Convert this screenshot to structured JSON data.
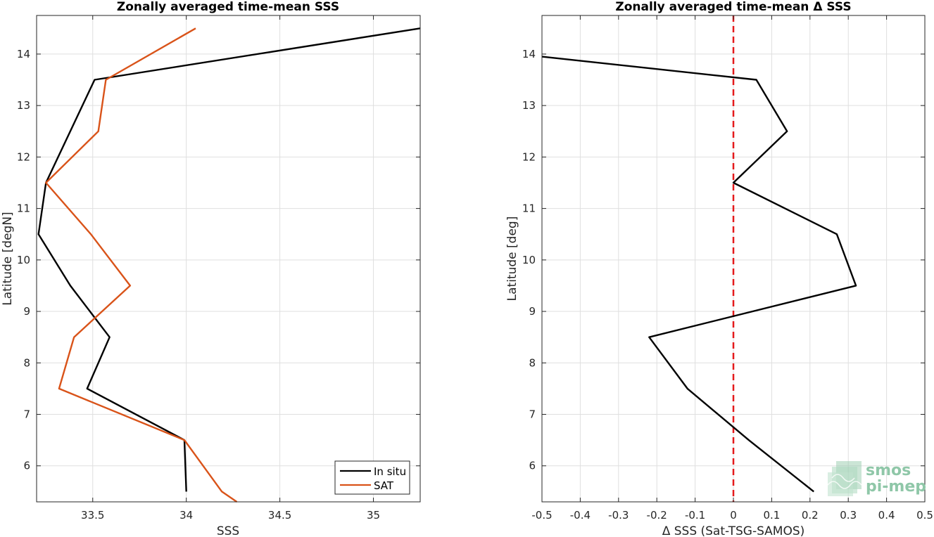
{
  "chart_data": [
    {
      "type": "line",
      "title": "Zonally averaged time-mean SSS",
      "xlabel": "SSS",
      "ylabel": "Latitude [degN]",
      "xlim": [
        33.2,
        35.25
      ],
      "ylim": [
        5.3,
        14.75
      ],
      "xticks": [
        33.5,
        34,
        34.5,
        35
      ],
      "xtick_labels": [
        "33.5",
        "34",
        "34.5",
        "35"
      ],
      "yticks": [
        6,
        7,
        8,
        9,
        10,
        11,
        12,
        13,
        14
      ],
      "ytick_labels": [
        "6",
        "7",
        "8",
        "9",
        "10",
        "11",
        "12",
        "13",
        "14"
      ],
      "grid": true,
      "legend_position": "bottom-right",
      "series": [
        {
          "name": "In situ",
          "color": "#000000",
          "x": [
            34.0,
            33.99,
            33.47,
            33.59,
            33.38,
            33.21,
            33.25,
            33.51,
            35.25
          ],
          "y": [
            5.5,
            6.5,
            7.5,
            8.5,
            9.5,
            10.5,
            11.5,
            13.5,
            14.5
          ]
        },
        {
          "name": "SAT",
          "color": "#d95319",
          "x": [
            34.27,
            34.19,
            33.99,
            33.32,
            33.4,
            33.7,
            33.49,
            33.25,
            33.53,
            33.57,
            34.05
          ],
          "y": [
            5.3,
            5.5,
            6.5,
            7.5,
            8.5,
            9.5,
            10.5,
            11.5,
            12.5,
            13.5,
            14.5
          ]
        }
      ]
    },
    {
      "type": "line",
      "title": "Zonally averaged time-mean Δ SSS",
      "xlabel": "Δ SSS (Sat-TSG-SAMOS)",
      "ylabel": "Latitude [deg]",
      "xlim": [
        -0.5,
        0.5
      ],
      "ylim": [
        5.3,
        14.75
      ],
      "xticks": [
        -0.5,
        -0.4,
        -0.3,
        -0.2,
        -0.1,
        0,
        0.1,
        0.2,
        0.3,
        0.4,
        0.5
      ],
      "xtick_labels": [
        "-0.5",
        "-0.4",
        "-0.3",
        "-0.2",
        "-0.1",
        "0",
        "0.1",
        "0.2",
        "0.3",
        "0.4",
        "0.5"
      ],
      "yticks": [
        6,
        7,
        8,
        9,
        10,
        11,
        12,
        13,
        14
      ],
      "ytick_labels": [
        "6",
        "7",
        "8",
        "9",
        "10",
        "11",
        "12",
        "13",
        "14"
      ],
      "grid": true,
      "reference_line": {
        "x": 0,
        "color": "#e41a1c",
        "style": "dashed"
      },
      "series": [
        {
          "color": "#000000",
          "x": [
            0.21,
            0.04,
            -0.12,
            -0.22,
            0.32,
            0.27,
            0.0,
            0.14,
            0.06,
            -0.5
          ],
          "y": [
            5.5,
            6.5,
            7.5,
            8.5,
            9.5,
            10.5,
            11.5,
            12.5,
            13.5,
            13.95
          ]
        }
      ]
    }
  ],
  "legend": {
    "items": [
      {
        "label": "In situ",
        "color": "#000000"
      },
      {
        "label": "SAT",
        "color": "#d95319"
      }
    ]
  },
  "logo": {
    "line1": "smos",
    "line2": "pi-mep",
    "color": "#8fc7a8"
  }
}
